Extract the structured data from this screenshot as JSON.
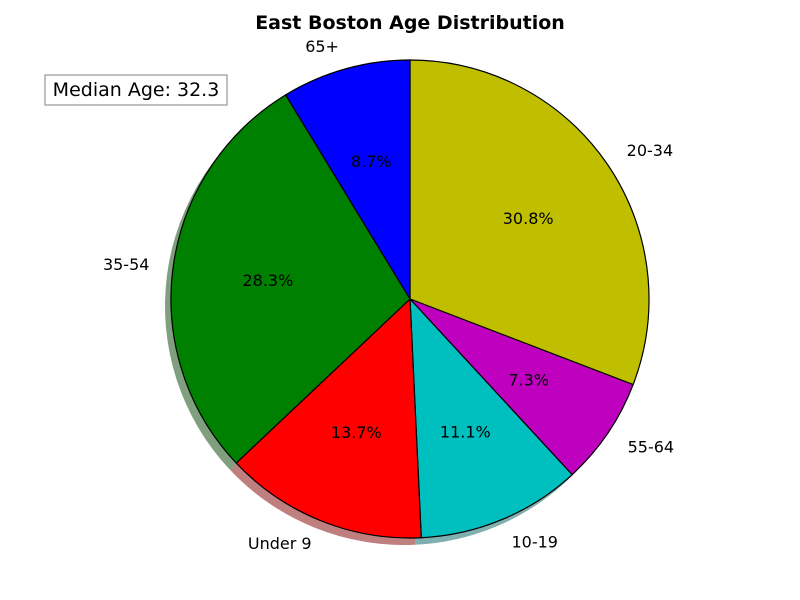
{
  "chart_data": {
    "type": "pie",
    "title": "East Boston Age Distribution",
    "annotation": "Median Age: 32.3",
    "slices": [
      {
        "label": "20-34",
        "value": 30.8,
        "pct_label": "30.8%",
        "color": "#bfbf00"
      },
      {
        "label": "55-64",
        "value": 7.3,
        "pct_label": "7.3%",
        "color": "#bf00bf"
      },
      {
        "label": "10-19",
        "value": 11.1,
        "pct_label": "11.1%",
        "color": "#00bfbf"
      },
      {
        "label": "Under 9",
        "value": 13.7,
        "pct_label": "13.7%",
        "color": "#ff0000"
      },
      {
        "label": "35-54",
        "value": 28.3,
        "pct_label": "28.3%",
        "color": "#008000"
      },
      {
        "label": "65+",
        "value": 8.7,
        "pct_label": "8.7%",
        "color": "#0000ff"
      }
    ],
    "start_angle_deg": 90,
    "direction": "clockwise",
    "shadow": true
  }
}
